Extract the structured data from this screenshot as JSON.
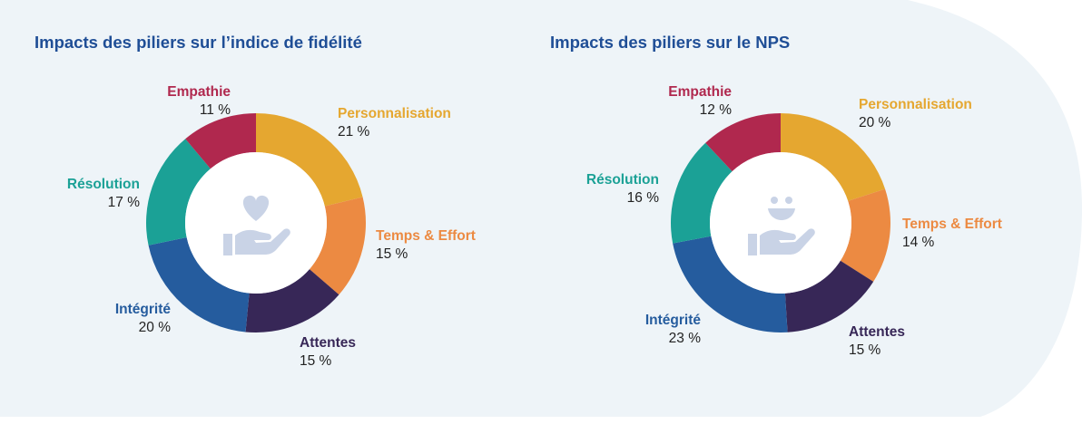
{
  "colors": {
    "title": "#1f4e96",
    "background_shape": "#eef4f8",
    "icon": "#c9d3e6",
    "Personnalisation": "#e5a730",
    "Temps & Effort": "#ec8a42",
    "Attentes": "#372757",
    "Intégrité": "#255c9e",
    "Résolution": "#1ba196",
    "Empathie": "#b0284e"
  },
  "chart_data": [
    {
      "type": "pie",
      "donut": true,
      "title": "Impacts des piliers sur l’indice de fidélité",
      "center_icon": "heart-in-hand-icon",
      "slices": [
        {
          "label": "Personnalisation",
          "value": 21,
          "display": "21 %"
        },
        {
          "label": "Temps & Effort",
          "value": 15,
          "display": "15 %"
        },
        {
          "label": "Attentes",
          "value": 15,
          "display": "15 %"
        },
        {
          "label": "Intégrité",
          "value": 20,
          "display": "20 %"
        },
        {
          "label": "Résolution",
          "value": 17,
          "display": "17 %"
        },
        {
          "label": "Empathie",
          "value": 11,
          "display": "11 %"
        }
      ]
    },
    {
      "type": "pie",
      "donut": true,
      "title": "Impacts des piliers sur le NPS",
      "center_icon": "smiley-in-hand-icon",
      "slices": [
        {
          "label": "Personnalisation",
          "value": 20,
          "display": "20 %"
        },
        {
          "label": "Temps & Effort",
          "value": 14,
          "display": "14 %"
        },
        {
          "label": "Attentes",
          "value": 15,
          "display": "15 %"
        },
        {
          "label": "Intégrité",
          "value": 23,
          "display": "23 %"
        },
        {
          "label": "Résolution",
          "value": 16,
          "display": "16 %"
        },
        {
          "label": "Empathie",
          "value": 12,
          "display": "12 %"
        }
      ]
    }
  ]
}
